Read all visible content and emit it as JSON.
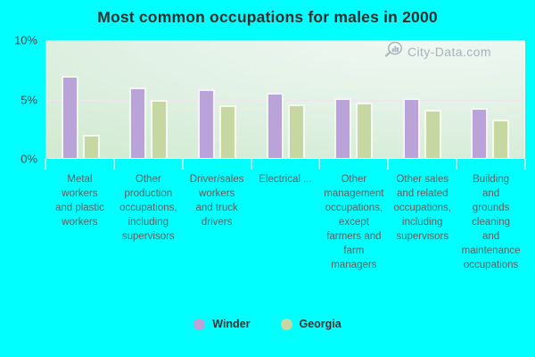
{
  "title": "Most common occupations for males in 2000",
  "watermark": {
    "text": "City-Data.com"
  },
  "colors": {
    "background": "#00ffff",
    "winder": "#b9a3d8",
    "georgia": "#c7d7a2",
    "plot_gradient_top": "#f0f8f3",
    "plot_gradient_bottom": "#cfe9cd",
    "gridline": "#efe6ed",
    "bar_border": "#fafdf8",
    "title_text": "#2e2e2e",
    "axis_text": "#414b4b",
    "category_text": "#5a6161",
    "legend_text": "#333333",
    "watermark_text": "#93a0a8"
  },
  "y_axis": {
    "tick_labels": [
      "10%",
      "5%",
      "0%"
    ]
  },
  "chart_data": {
    "type": "bar",
    "title": "Most common occupations for males in 2000",
    "unit": "percent",
    "ylim": [
      0,
      10
    ],
    "yticks": [
      0,
      5,
      10
    ],
    "grid": "horizontal-5%",
    "legend_position": "bottom",
    "categories": [
      "Metal workers and plastic workers",
      "Other production occupations, including supervisors",
      "Driver/sales workers and truck drivers",
      "Electrical ...",
      "Other management occupations, except farmers and farm managers",
      "Other sales and related occupations, including supervisors",
      "Building and grounds cleaning and maintenance occupations"
    ],
    "category_lines": [
      [
        "Metal",
        "workers",
        "and plastic",
        "workers"
      ],
      [
        "Other",
        "production",
        "occupations,",
        "including",
        "supervisors"
      ],
      [
        "Driver/sales",
        "workers",
        "and truck",
        "drivers"
      ],
      [
        "Electrical ..."
      ],
      [
        "Other",
        "management",
        "occupations,",
        "except",
        "farmers and",
        "farm",
        "managers"
      ],
      [
        "Other sales",
        "and related",
        "occupations,",
        "including",
        "supervisors"
      ],
      [
        "Building",
        "and",
        "grounds",
        "cleaning",
        "and",
        "maintenance",
        "occupations"
      ]
    ],
    "series": [
      {
        "name": "Winder",
        "color": "#b9a3d8",
        "values": [
          7.0,
          6.0,
          5.9,
          5.6,
          5.1,
          5.1,
          4.3
        ]
      },
      {
        "name": "Georgia",
        "color": "#c7d7a2",
        "values": [
          2.0,
          5.0,
          4.5,
          4.6,
          4.7,
          4.1,
          3.3
        ]
      }
    ]
  },
  "legend": {
    "items": [
      {
        "label": "Winder",
        "color": "#b9a3d8"
      },
      {
        "label": "Georgia",
        "color": "#c7d7a2"
      }
    ]
  }
}
